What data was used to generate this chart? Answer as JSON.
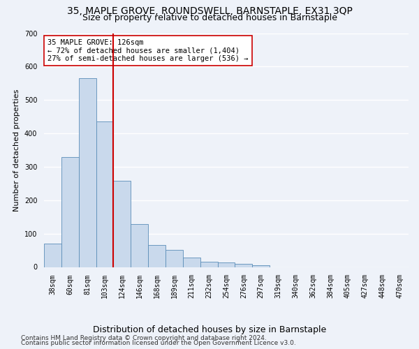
{
  "title": "35, MAPLE GROVE, ROUNDSWELL, BARNSTAPLE, EX31 3QP",
  "subtitle": "Size of property relative to detached houses in Barnstaple",
  "xlabel": "Distribution of detached houses by size in Barnstaple",
  "ylabel": "Number of detached properties",
  "categories": [
    "38sqm",
    "60sqm",
    "81sqm",
    "103sqm",
    "124sqm",
    "146sqm",
    "168sqm",
    "189sqm",
    "211sqm",
    "232sqm",
    "254sqm",
    "276sqm",
    "297sqm",
    "319sqm",
    "340sqm",
    "362sqm",
    "384sqm",
    "405sqm",
    "427sqm",
    "448sqm",
    "470sqm"
  ],
  "values": [
    70,
    330,
    565,
    435,
    258,
    128,
    65,
    52,
    28,
    15,
    13,
    10,
    5,
    0,
    0,
    0,
    0,
    0,
    0,
    0,
    0
  ],
  "bar_color": "#c9d9ec",
  "bar_edge_color": "#5b8db8",
  "vline_x_index": 3.5,
  "vline_color": "#cc0000",
  "annotation_text": "35 MAPLE GROVE: 126sqm\n← 72% of detached houses are smaller (1,404)\n27% of semi-detached houses are larger (536) →",
  "annotation_box_color": "#ffffff",
  "annotation_box_edge": "#cc0000",
  "ylim": [
    0,
    700
  ],
  "yticks": [
    0,
    100,
    200,
    300,
    400,
    500,
    600,
    700
  ],
  "footer_line1": "Contains HM Land Registry data © Crown copyright and database right 2024.",
  "footer_line2": "Contains public sector information licensed under the Open Government Licence v3.0.",
  "background_color": "#eef2f9",
  "plot_background": "#eef2f9",
  "grid_color": "#ffffff",
  "title_fontsize": 10,
  "subtitle_fontsize": 9,
  "xlabel_fontsize": 9,
  "ylabel_fontsize": 8,
  "tick_fontsize": 7,
  "annotation_fontsize": 7.5,
  "footer_fontsize": 6.5
}
